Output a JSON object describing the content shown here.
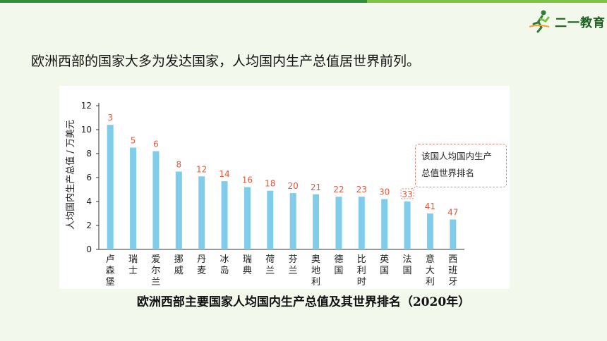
{
  "brand": {
    "name": "二一教育"
  },
  "intro_text": "欧洲西部的国家大多为发达国家，人均国内生产总值居世界前列。",
  "caption": "欧洲西部主要国家人均国内生产总值及其世界排名（2020年）",
  "callout": {
    "line1": "该国人均国内生产",
    "line2": "总值世界排名"
  },
  "colors": {
    "bar": "#7fcdea",
    "rank": "#e05a3e",
    "accent": "#7cc243"
  },
  "chart_data": {
    "type": "bar",
    "title": "",
    "xlabel": "",
    "ylabel": "人均国内生产总值 / 万美元",
    "ylim": [
      0,
      12
    ],
    "yticks": [
      0,
      2,
      4,
      6,
      8,
      10,
      12
    ],
    "grid": false,
    "categories": [
      "卢森堡",
      "瑞士",
      "爱尔兰",
      "挪威",
      "丹麦",
      "冰岛",
      "瑞典",
      "荷兰",
      "芬兰",
      "奥地利",
      "德国",
      "比利时",
      "英国",
      "法国",
      "意大利",
      "西班牙"
    ],
    "values": [
      10.4,
      8.5,
      8.2,
      6.5,
      6.1,
      5.7,
      5.2,
      4.9,
      4.7,
      4.6,
      4.4,
      4.4,
      4.2,
      4.0,
      3.0,
      2.5
    ],
    "ranks": [
      "3",
      "5",
      "6",
      "8",
      "12",
      "14",
      "16",
      "18",
      "20",
      "21",
      "22",
      "23",
      "30",
      "33",
      "41",
      "47"
    ]
  }
}
